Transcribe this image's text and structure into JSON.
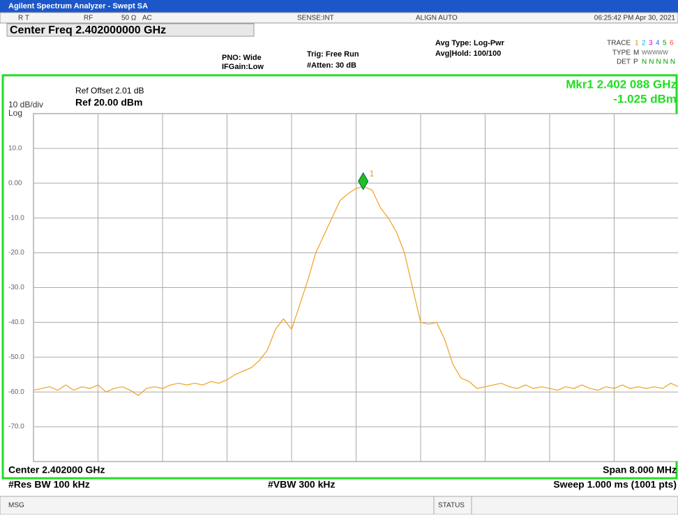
{
  "window_title": "Agilent Spectrum Analyzer - Swept SA",
  "status_row": {
    "mode": "R T",
    "rf": "RF",
    "impedance": "50 Ω",
    "coupling": "AC",
    "sense": "SENSE:INT",
    "align": "ALIGN AUTO",
    "datetime": "06:25:42 PM Apr 30, 2021"
  },
  "settings": {
    "center_freq": "Center Freq 2.402000000 GHz",
    "pno": "PNO: Wide",
    "ifgain": "IFGain:Low",
    "trig": "Trig: Free Run",
    "atten": "#Atten: 30 dB",
    "avg_type": "Avg Type: Log-Pwr",
    "avg_hold": "Avg|Hold: 100/100",
    "trace_label": "TRACE",
    "trace_numbers": [
      {
        "text": "1",
        "color": "#e08a00"
      },
      {
        "text": "2",
        "color": "#00b0e0"
      },
      {
        "text": "3",
        "color": "#d000d0"
      },
      {
        "text": "4",
        "color": "#3060ff"
      },
      {
        "text": "5",
        "color": "#00a000"
      },
      {
        "text": "6",
        "color": "#ff4040"
      }
    ],
    "type_label": "TYPE",
    "type_value": "M",
    "type_rest": "WWWWW",
    "det_label": "DET",
    "det_value": "P",
    "det_rest": "NNNNN"
  },
  "chart_data": {
    "type": "line",
    "ref_offset": "Ref Offset 2.01 dB",
    "scale": "10 dB/div",
    "ref_level": "Ref 20.00 dBm",
    "scale_type": "Log",
    "marker": {
      "label": "1",
      "x": 2.402088,
      "y": -1.025,
      "freq_text": "Mkr1 2.402 088 GHz",
      "amp_text": "-1.025 dBm",
      "color": "#20c020"
    },
    "xlim": [
      2.398,
      2.406
    ],
    "ylim": [
      -80,
      20
    ],
    "yticks": [
      {
        "value": 10,
        "label": "10.0"
      },
      {
        "value": 0,
        "label": "0.00"
      },
      {
        "value": -10,
        "label": "-10.0"
      },
      {
        "value": -20,
        "label": "-20.0"
      },
      {
        "value": -30,
        "label": "-30.0"
      },
      {
        "value": -40,
        "label": "-40.0"
      },
      {
        "value": -50,
        "label": "-50.0"
      },
      {
        "value": -60,
        "label": "-60.0"
      },
      {
        "value": -70,
        "label": "-70.0"
      }
    ],
    "grid": true,
    "series": [
      {
        "name": "Trace 1",
        "color": "#f0a020",
        "x": [
          2.398,
          2.3981,
          2.3982,
          2.3983,
          2.3984,
          2.3985,
          2.3986,
          2.3987,
          2.3988,
          2.3989,
          2.399,
          2.3991,
          2.3992,
          2.3993,
          2.3994,
          2.3995,
          2.3996,
          2.3997,
          2.3998,
          2.3999,
          2.4,
          2.4001,
          2.4002,
          2.4003,
          2.4004,
          2.4005,
          2.4006,
          2.4007,
          2.4008,
          2.4009,
          2.401,
          2.4011,
          2.4012,
          2.4013,
          2.4014,
          2.4015,
          2.4016,
          2.4017,
          2.4018,
          2.4019,
          2.402,
          2.4021,
          2.4022,
          2.4023,
          2.4024,
          2.4025,
          2.4026,
          2.4027,
          2.4028,
          2.4029,
          2.403,
          2.4031,
          2.4032,
          2.4033,
          2.4034,
          2.4035,
          2.4036,
          2.4037,
          2.4038,
          2.4039,
          2.404,
          2.4041,
          2.4042,
          2.4043,
          2.4044,
          2.4045,
          2.4046,
          2.4047,
          2.4048,
          2.4049,
          2.405,
          2.4051,
          2.4052,
          2.4053,
          2.4054,
          2.4055,
          2.4056,
          2.4057,
          2.4058,
          2.4059,
          2.406
        ],
        "values": [
          -59.5,
          -59,
          -58.5,
          -59.5,
          -58,
          -59.5,
          -58.5,
          -59,
          -58,
          -60,
          -59,
          -58.5,
          -59.5,
          -61,
          -59,
          -58.5,
          -59,
          -58,
          -57.5,
          -58,
          -57.5,
          -58,
          -57,
          -57.5,
          -56.5,
          -55,
          -54,
          -53,
          -51,
          -48,
          -42,
          -39,
          -42,
          -35,
          -28,
          -20,
          -15,
          -10,
          -5,
          -3,
          -1.5,
          -1,
          -2,
          -7,
          -10,
          -14,
          -20,
          -30,
          -40,
          -40.5,
          -40,
          -45,
          -52,
          -56,
          -57,
          -59,
          -58.5,
          -58,
          -57.5,
          -58.5,
          -59,
          -58,
          -59,
          -58.5,
          -59,
          -59.5,
          -58.5,
          -59,
          -58,
          -59,
          -59.5,
          -58.5,
          -59,
          -58,
          -59,
          -58.5,
          -59,
          -58.5,
          -59,
          -57.5,
          -58.5
        ]
      }
    ],
    "center": "Center 2.402000 GHz",
    "span": "Span 8.000 MHz",
    "rbw": "#Res BW 100 kHz",
    "vbw": "#VBW 300 kHz",
    "sweep": "Sweep  1.000 ms (1001 pts)"
  },
  "footer": {
    "msg": "MSG",
    "status": "STATUS"
  }
}
